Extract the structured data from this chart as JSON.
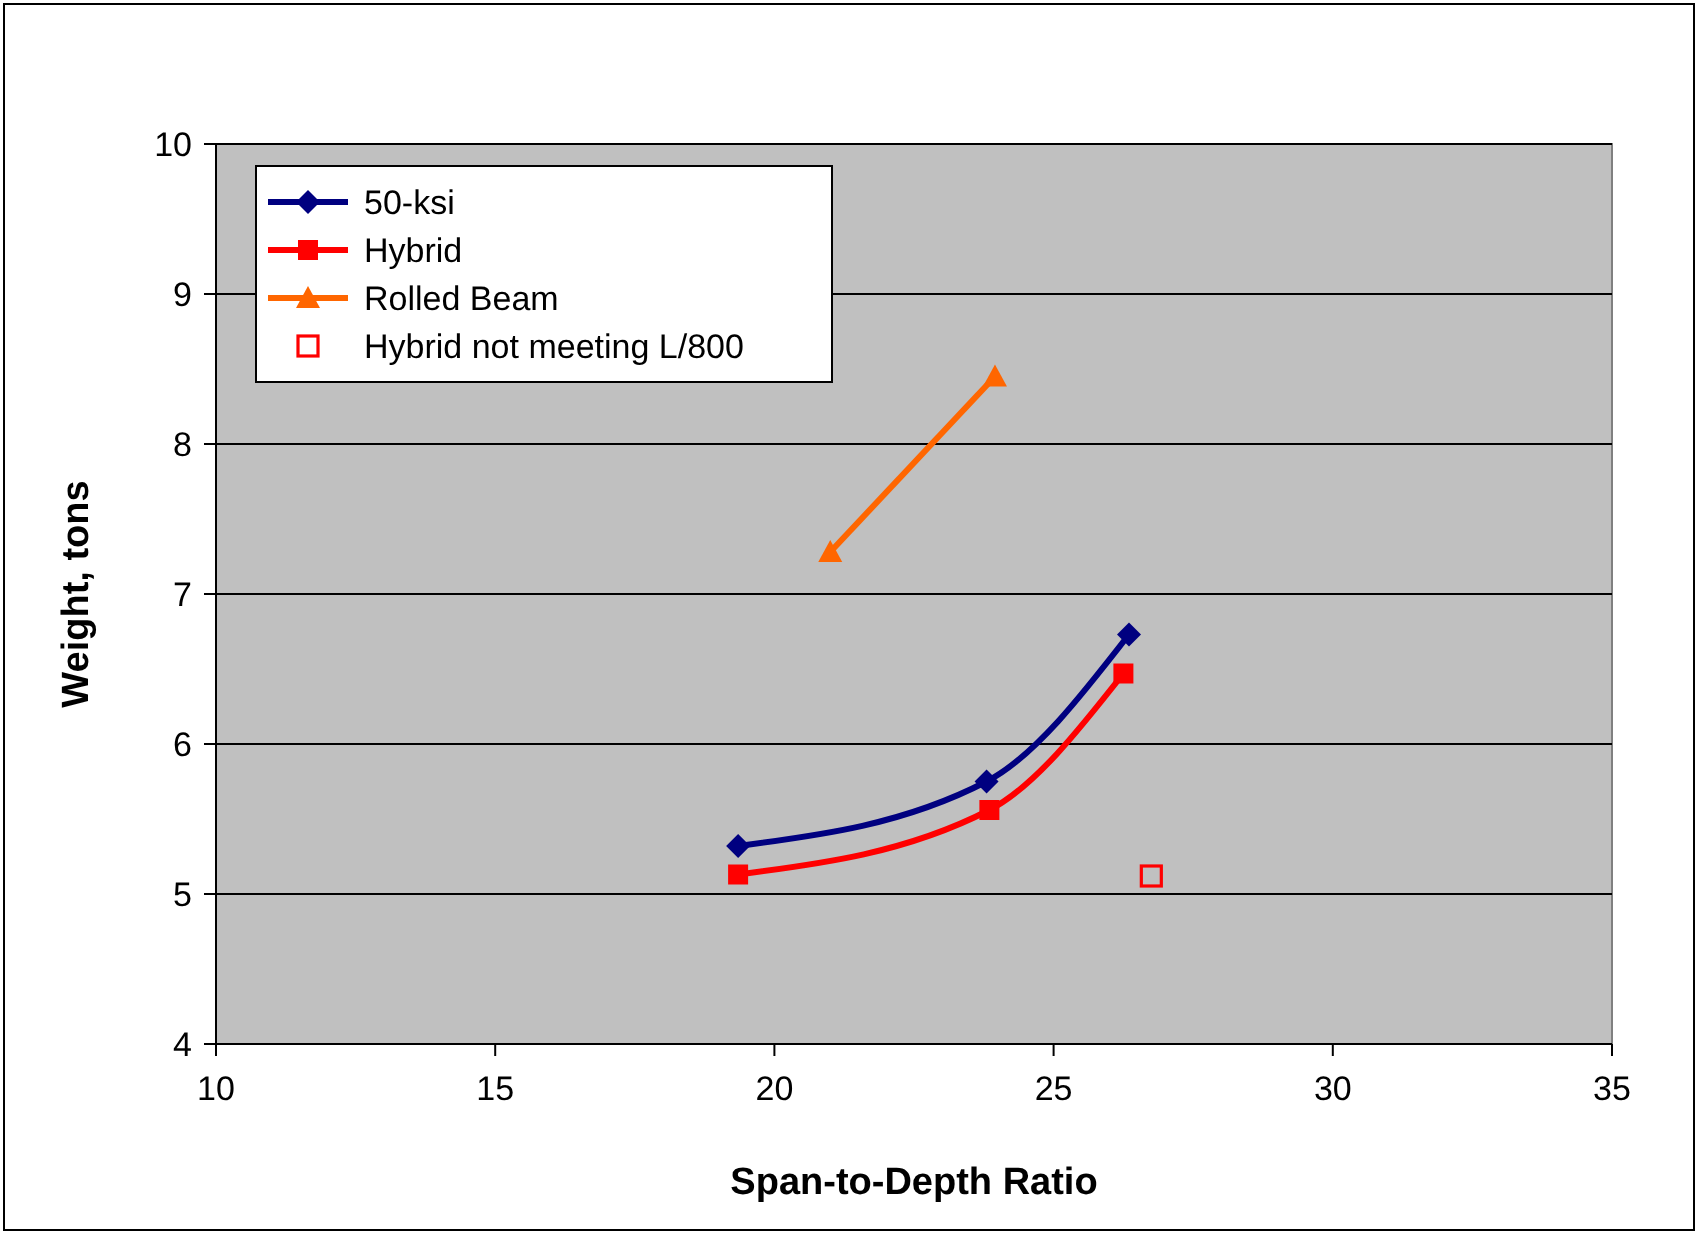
{
  "chart_data": {
    "type": "line",
    "xlabel": "Span-to-Depth Ratio",
    "ylabel": "Weight, tons",
    "xlim": [
      10,
      35
    ],
    "xticks": [
      10,
      15,
      20,
      25,
      30,
      35
    ],
    "ylim": [
      4,
      10
    ],
    "yticks": [
      4,
      5,
      6,
      7,
      8,
      9,
      10
    ],
    "grid": "y",
    "legend": "top left",
    "series": [
      {
        "name": "50-ksi",
        "color": "#000080",
        "marker": "diamond",
        "x": [
          19.35,
          23.8,
          26.35
        ],
        "values": [
          5.32,
          5.75,
          6.73
        ]
      },
      {
        "name": "Hybrid",
        "color": "#ff0000",
        "marker": "square",
        "x": [
          19.35,
          23.85,
          26.25
        ],
        "values": [
          5.13,
          5.56,
          6.47
        ]
      },
      {
        "name": "Rolled Beam",
        "color": "#ff6600",
        "marker": "triangle",
        "x": [
          21.0,
          23.95
        ],
        "values": [
          7.28,
          8.45
        ]
      },
      {
        "name": "Hybrid not meeting L/800",
        "type": "scatter",
        "color": "#ff0000",
        "marker": "square",
        "x": [
          26.75
        ],
        "values": [
          5.12
        ]
      }
    ]
  }
}
